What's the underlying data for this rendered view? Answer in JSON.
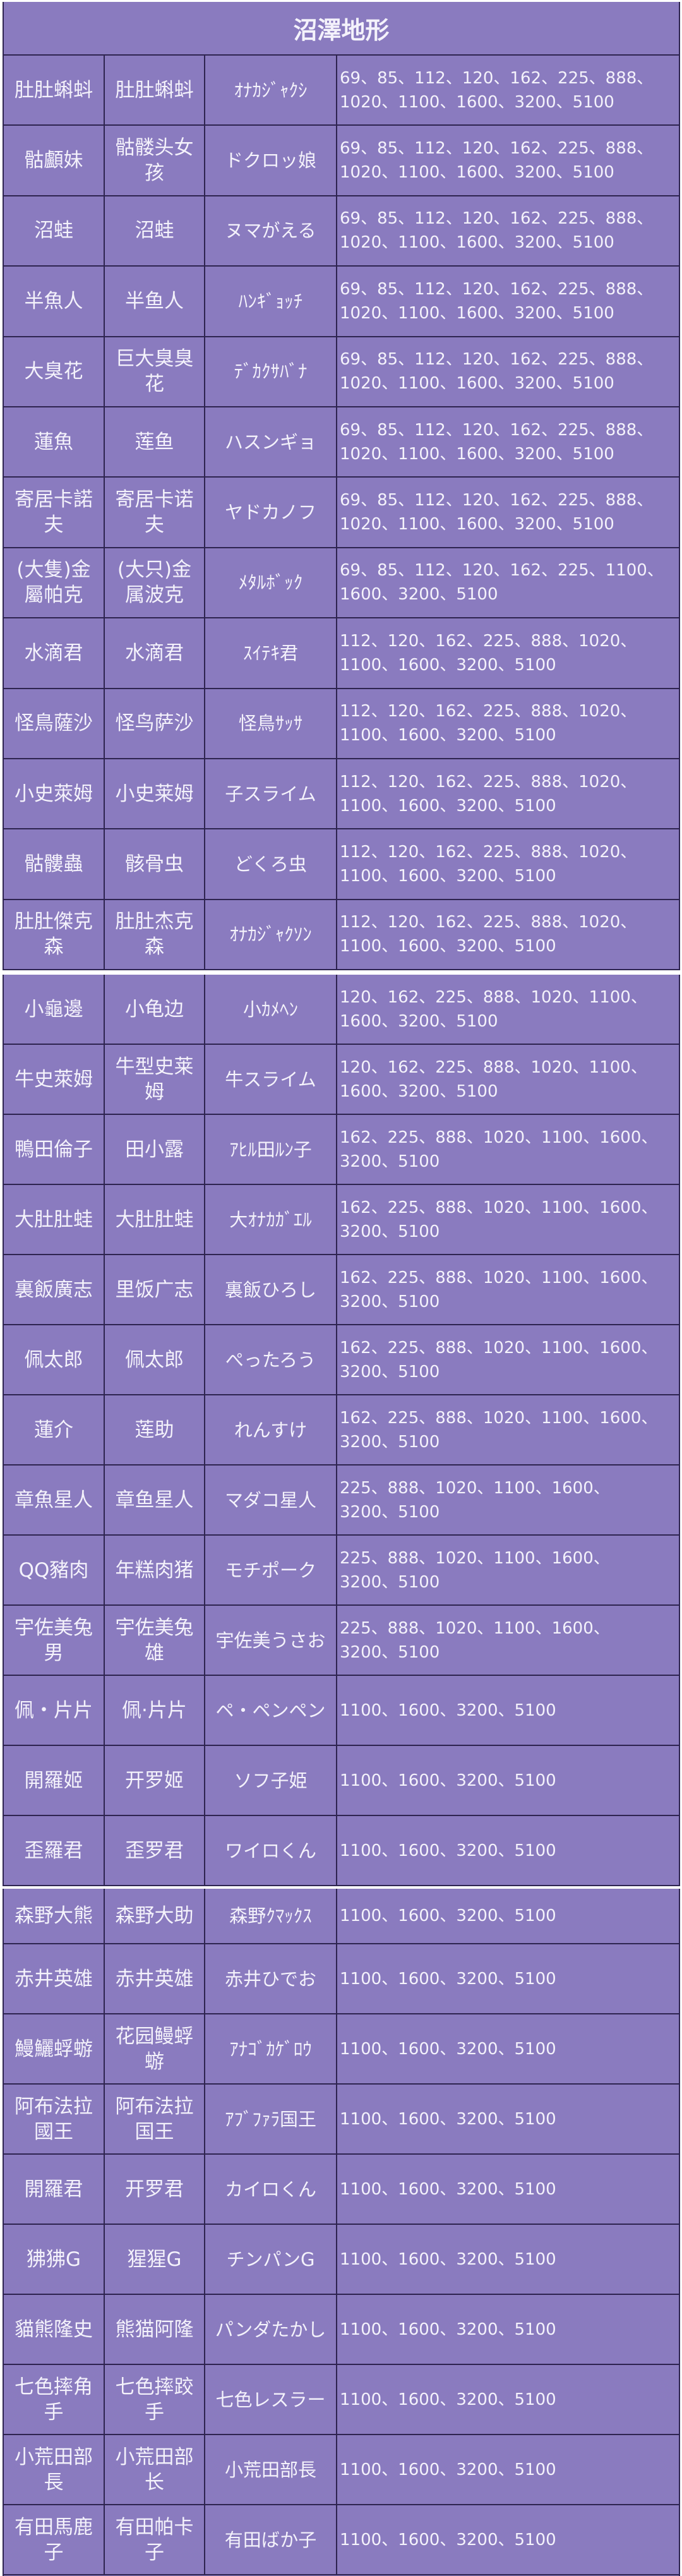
{
  "title": "沼澤地形",
  "colors": {
    "cell_bg": "#8a7bbf",
    "border": "#2e2450",
    "text": "#f4f2fb"
  },
  "tables": [
    {
      "rows": [
        [
          "肚肚蝌蚪",
          "肚肚蝌蚪",
          "ｵﾅｶｼﾞｬｸｼ",
          "69、85、112、120、162、225、888、1020、1100、1600、3200、5100"
        ],
        [
          "骷顱妹",
          "骷髅头女孩",
          "ドクロッ娘",
          "69、85、112、120、162、225、888、1020、1100、1600、3200、5100"
        ],
        [
          "沼蛙",
          "沼蛙",
          "ヌマがえる",
          "69、85、112、120、162、225、888、1020、1100、1600、3200、5100"
        ],
        [
          "半魚人",
          "半鱼人",
          "ﾊﾝｷﾞｮｯﾁ",
          "69、85、112、120、162、225、888、1020、1100、1600、3200、5100"
        ],
        [
          "大臭花",
          "巨大臭臭花",
          "ﾃﾞｶｸｻﾊﾞﾅ",
          "69、85、112、120、162、225、888、1020、1100、1600、3200、5100"
        ],
        [
          "蓮魚",
          "莲鱼",
          "ハスンギョ",
          "69、85、112、120、162、225、888、1020、1100、1600、3200、5100"
        ],
        [
          "寄居卡諾夫",
          "寄居卡诺夫",
          "ヤドカノフ",
          "69、85、112、120、162、225、888、1020、1100、1600、3200、5100"
        ],
        [
          "(大隻)金屬帕克",
          "(大只)金属波克",
          "ﾒﾀﾙﾎﾞｯｸ",
          "69、85、112、120、162、225、1100、1600、3200、5100"
        ],
        [
          "水滴君",
          "水滴君",
          "ｽｲﾃｷ君",
          "112、120、162、225、888、1020、1100、1600、3200、5100"
        ],
        [
          "怪鳥薩沙",
          "怪鸟萨沙",
          "怪鳥ｻｯｻ",
          "112、120、162、225、888、1020、1100、1600、3200、5100"
        ],
        [
          "小史萊姆",
          "小史莱姆",
          "子スライム",
          "112、120、162、225、888、1020、1100、1600、3200、5100"
        ],
        [
          "骷髏蟲",
          "骸骨虫",
          "どくろ虫",
          "112、120、162、225、888、1020、1100、1600、3200、5100"
        ],
        [
          "肚肚傑克森",
          "肚肚杰克森",
          "ｵﾅｶｼﾞｬｸｿﾝ",
          "112、120、162、225、888、1020、1100、1600、3200、5100"
        ]
      ]
    },
    {
      "rows": [
        [
          "小龜邊",
          "小龟边",
          "小ｶﾒﾍﾝ",
          "120、162、225、888、1020、1100、1600、3200、5100"
        ],
        [
          "牛史萊姆",
          "牛型史莱姆",
          "牛スライム",
          "120、162、225、888、1020、1100、1600、3200、5100"
        ],
        [
          "鴨田倫子",
          "田小露",
          "ｱﾋﾙ田ﾙﾝ子",
          "162、225、888、1020、1100、1600、3200、5100"
        ],
        [
          "大肚肚蛙",
          "大肚肚蛙",
          "大ｵﾅｶｶﾞｴﾙ",
          "162、225、888、1020、1100、1600、3200、5100"
        ],
        [
          "裏飯廣志",
          "里饭广志",
          "裏飯ひろし",
          "162、225、888、1020、1100、1600、3200、5100"
        ],
        [
          "佩太郎",
          "佩太郎",
          "ぺったろう",
          "162、225、888、1020、1100、1600、3200、5100"
        ],
        [
          "蓮介",
          "莲助",
          "れんすけ",
          "162、225、888、1020、1100、1600、3200、5100"
        ],
        [
          "章魚星人",
          "章鱼星人",
          "マダコ星人",
          "225、888、1020、1100、1600、3200、5100"
        ],
        [
          "QQ豬肉",
          "年糕肉猪",
          "モチポーク",
          "225、888、1020、1100、1600、3200、5100"
        ],
        [
          "宇佐美兔男",
          "宇佐美兔雄",
          "宇佐美うさお",
          "225、888、1020、1100、1600、3200、5100"
        ],
        [
          "佩・片片",
          "佩·片片",
          "ペ・ペンペン",
          "1100、1600、3200、5100"
        ],
        [
          "開羅姬",
          "开罗姬",
          "ソフ子姫",
          "1100、1600、3200、5100"
        ],
        [
          "歪羅君",
          "歪罗君",
          "ワイロくん",
          "1100、1600、3200、5100"
        ]
      ]
    },
    {
      "rows": [
        [
          "森野大熊",
          "森野大助",
          "森野ｸﾏｯｸｽ",
          "1100、1600、3200、5100"
        ],
        [
          "赤井英雄",
          "赤井英雄",
          "赤井ひでお",
          "1100、1600、3200、5100"
        ],
        [
          "鰻鱺蜉蝣",
          "花园鳗蜉蝣",
          "ｱﾅｺﾞｶｹﾞﾛｳ",
          "1100、1600、3200、5100"
        ],
        [
          "阿布法拉國王",
          "阿布法拉国王",
          "ｱﾌﾞﾌｧﾗ国王",
          "1100、1600、3200、5100"
        ],
        [
          "開羅君",
          "开罗君",
          "カイロくん",
          "1100、1600、3200、5100"
        ],
        [
          "狒狒G",
          "猩猩G",
          "チンパンG",
          "1100、1600、3200、5100"
        ],
        [
          "貓熊隆史",
          "熊猫阿隆",
          "パンダたかし",
          "1100、1600、3200、5100"
        ],
        [
          "七色摔角手",
          "七色摔跤手",
          "七色レスラー",
          "1100、1600、3200、5100"
        ],
        [
          "小荒田部長",
          "小荒田部长",
          "小荒田部長",
          "1100、1600、3200、5100"
        ],
        [
          "有田馬鹿子",
          "有田帕卡子",
          "有田ばか子",
          "1100、1600、3200、5100"
        ]
      ]
    }
  ]
}
